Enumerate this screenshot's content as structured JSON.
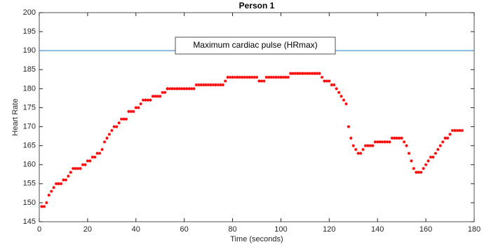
{
  "chart_data": {
    "type": "scatter",
    "title": "Person 1",
    "x_label": "Time (seconds)",
    "y_label": "Heart Rate",
    "x": [
      1,
      2,
      3,
      4,
      5,
      6,
      7,
      8,
      9,
      10,
      11,
      12,
      13,
      14,
      15,
      16,
      17,
      18,
      19,
      20,
      21,
      22,
      23,
      24,
      25,
      26,
      27,
      28,
      29,
      30,
      31,
      32,
      33,
      34,
      35,
      36,
      37,
      38,
      39,
      40,
      41,
      42,
      43,
      44,
      45,
      46,
      47,
      48,
      49,
      50,
      51,
      52,
      53,
      54,
      55,
      56,
      57,
      58,
      59,
      60,
      61,
      62,
      63,
      64,
      65,
      66,
      67,
      68,
      69,
      70,
      71,
      72,
      73,
      74,
      75,
      76,
      77,
      78,
      79,
      80,
      81,
      82,
      83,
      84,
      85,
      86,
      87,
      88,
      89,
      90,
      91,
      92,
      93,
      94,
      95,
      96,
      97,
      98,
      99,
      100,
      101,
      102,
      103,
      104,
      105,
      106,
      107,
      108,
      109,
      110,
      111,
      112,
      113,
      114,
      115,
      116,
      117,
      118,
      119,
      120,
      121,
      122,
      123,
      124,
      125,
      126,
      127,
      128,
      129,
      130,
      131,
      132,
      133,
      134,
      135,
      136,
      137,
      138,
      139,
      140,
      141,
      142,
      143,
      144,
      145,
      146,
      147,
      148,
      149,
      150,
      151,
      152,
      153,
      154,
      155,
      156,
      157,
      158,
      159,
      160,
      161,
      162,
      163,
      164,
      165,
      166,
      167,
      168,
      169,
      170,
      171,
      172,
      173,
      174,
      175
    ],
    "series": [
      {
        "color": "#ff0000",
        "values": [
          149,
          149,
          150,
          152,
          153,
          154,
          155,
          155,
          155,
          156,
          156,
          157,
          158,
          159,
          159,
          159,
          159,
          160,
          160,
          161,
          161,
          162,
          162,
          163,
          163,
          164,
          166,
          167,
          168,
          169,
          170,
          170,
          171,
          172,
          172,
          172,
          174,
          174,
          174,
          175,
          175,
          176,
          177,
          177,
          177,
          177,
          178,
          178,
          178,
          178,
          179,
          179,
          180,
          180,
          180,
          180,
          180,
          180,
          180,
          180,
          180,
          180,
          180,
          180,
          181,
          181,
          181,
          181,
          181,
          181,
          181,
          181,
          181,
          181,
          181,
          181,
          182,
          183,
          183,
          183,
          183,
          183,
          183,
          183,
          183,
          183,
          183,
          183,
          183,
          183,
          182,
          182,
          182,
          183,
          183,
          183,
          183,
          183,
          183,
          183,
          183,
          183,
          183,
          184,
          184,
          184,
          184,
          184,
          184,
          184,
          184,
          184,
          184,
          184,
          184,
          184,
          183,
          182,
          182,
          182,
          181,
          181,
          180,
          179,
          178,
          177,
          176,
          170,
          167,
          165,
          164,
          163,
          163,
          164,
          165,
          165,
          165,
          165,
          166,
          166,
          166,
          166,
          166,
          166,
          166,
          167,
          167,
          167,
          167,
          167,
          166,
          165,
          163,
          161,
          159,
          158,
          158,
          158,
          159,
          160,
          161,
          162,
          162,
          163,
          164,
          165,
          166,
          167,
          167,
          168,
          169,
          169,
          169,
          169,
          169
        ]
      }
    ],
    "reference_line": {
      "value": 190,
      "label": "Maximum cardiac pulse (HRmax)",
      "color": "#5b9bd5"
    },
    "xlim": [
      0,
      180
    ],
    "ylim": [
      145,
      200
    ],
    "xticks": [
      0,
      20,
      40,
      60,
      80,
      100,
      120,
      140,
      160,
      180
    ],
    "yticks": [
      145,
      150,
      155,
      160,
      165,
      170,
      175,
      180,
      185,
      190,
      195,
      200
    ]
  }
}
